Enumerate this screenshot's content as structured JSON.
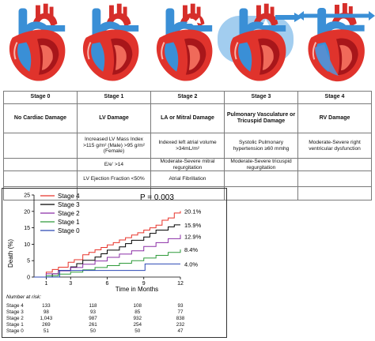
{
  "colors": {
    "heart_red": "#e0332c",
    "heart_dark_red": "#a8161a",
    "vessel_blue": "#3a8fd6",
    "lung_blue": "#7ab8e8",
    "stage4": "#e8332a",
    "stage3": "#000000",
    "stage2": "#8b2fa6",
    "stage1": "#2e9a3a",
    "stage0": "#2b47b5"
  },
  "hearts": [
    {
      "label": "stage-0-heart"
    },
    {
      "label": "stage-1-heart"
    },
    {
      "label": "stage-2-heart"
    },
    {
      "label": "stage-3-heart"
    },
    {
      "label": "stage-4-heart"
    }
  ],
  "table": {
    "headers": [
      "Stage 0",
      "Stage 1",
      "Stage 2",
      "Stage 3",
      "Stage 4"
    ],
    "names": [
      "No Cardiac Damage",
      "LV Damage",
      "LA or Mitral Damage",
      "Pulmonary Vasculature or Tricuspid Damage",
      "RV Damage"
    ],
    "row1": [
      "",
      "Increased LV Mass Index >115 g/m² (Male) >95 g/m² (Female)",
      "Indexed left atrial volume >34mL/m²",
      "Systolic Pulmonary hypertension ≥60 mmhg",
      "Moderate-Severe right ventricular dysfunction"
    ],
    "row2": [
      "",
      "E/e' >14",
      "Moderate-Severe mitral regurgitation",
      "Moderate-Severe tricuspid regurgitation",
      ""
    ],
    "row3": [
      "",
      "LV Ejection Fraction <50%",
      "Atrial Fibrillation",
      "",
      ""
    ],
    "row4": [
      "",
      "",
      "",
      "",
      ""
    ]
  },
  "km": {
    "p_value": "P = 0.003",
    "ylabel": "Death (%)",
    "xlabel": "Time in Months",
    "legend": [
      "Stage 4",
      "Stage 3",
      "Stage 2",
      "Stage 1",
      "Stage 0"
    ],
    "end_labels": [
      "20.1%",
      "15.9%",
      "12.9%",
      "8.4%",
      "4.0%"
    ],
    "number_at_risk_title": "Number at risk:",
    "risk_rows": [
      {
        "stage": "Stage 4",
        "values": [
          "133",
          "118",
          "108",
          "93"
        ]
      },
      {
        "stage": "Stage 3",
        "values": [
          "98",
          "93",
          "85",
          "77"
        ]
      },
      {
        "stage": "Stage 2",
        "values": [
          "1,043",
          "987",
          "932",
          "838"
        ]
      },
      {
        "stage": "Stage 1",
        "values": [
          "269",
          "261",
          "254",
          "232"
        ]
      },
      {
        "stage": "Stage 0",
        "values": [
          "51",
          "50",
          "50",
          "47"
        ]
      }
    ]
  },
  "chart_data": {
    "type": "line",
    "xlabel": "Time in Months",
    "ylabel": "Death (%)",
    "xlim": [
      0,
      12
    ],
    "ylim": [
      0,
      25
    ],
    "xticks": [
      "1",
      "3",
      "6",
      "9",
      "12"
    ],
    "yticks": [
      "0",
      "5",
      "10",
      "15",
      "20",
      "25"
    ],
    "series": [
      {
        "name": "Stage 4",
        "color": "#e8332a",
        "x": [
          0,
          1,
          1.5,
          2,
          2.8,
          3.3,
          4,
          4.5,
          5,
          5.5,
          6,
          6.5,
          7,
          7.5,
          8,
          8.5,
          9,
          9.5,
          10,
          10.5,
          11,
          11.5,
          12
        ],
        "y": [
          0,
          1.5,
          2.3,
          3.0,
          4.5,
          5.3,
          6.8,
          7.5,
          8.3,
          9.0,
          9.8,
          10.5,
          11.3,
          12.0,
          12.8,
          13.5,
          14.3,
          15.0,
          15.8,
          17.3,
          18.0,
          19.5,
          20.1
        ]
      },
      {
        "name": "Stage 3",
        "color": "#000000",
        "x": [
          0,
          1.5,
          2,
          3,
          3.5,
          4,
          5,
          5.5,
          6,
          7,
          7.5,
          8,
          9,
          9.5,
          10,
          11,
          11.5,
          12
        ],
        "y": [
          0,
          1.0,
          2.0,
          3.1,
          4.1,
          5.1,
          6.1,
          7.1,
          8.2,
          9.2,
          10.2,
          11.2,
          12.2,
          13.3,
          14.3,
          15.3,
          15.9,
          15.9
        ]
      },
      {
        "name": "Stage 2",
        "color": "#8b2fa6",
        "x": [
          0,
          1,
          2,
          3,
          4,
          5,
          6,
          7,
          8,
          9,
          10,
          11,
          12
        ],
        "y": [
          0,
          1.0,
          1.9,
          2.9,
          3.9,
          4.9,
          6.0,
          7.0,
          8.0,
          9.3,
          10.5,
          11.7,
          12.9
        ]
      },
      {
        "name": "Stage 1",
        "color": "#2e9a3a",
        "x": [
          0,
          1,
          2,
          3,
          4,
          5,
          6,
          7,
          8,
          9,
          10,
          11,
          12
        ],
        "y": [
          0,
          0.4,
          0.9,
          1.5,
          2.2,
          2.9,
          3.5,
          4.2,
          5.0,
          5.8,
          6.6,
          7.5,
          8.4
        ]
      },
      {
        "name": "Stage 0",
        "color": "#2b47b5",
        "x": [
          0,
          2,
          2.1,
          6,
          6.1,
          9,
          9.1,
          12
        ],
        "y": [
          0,
          0,
          2.0,
          2.0,
          2.0,
          2.0,
          4.0,
          4.0
        ]
      }
    ]
  }
}
